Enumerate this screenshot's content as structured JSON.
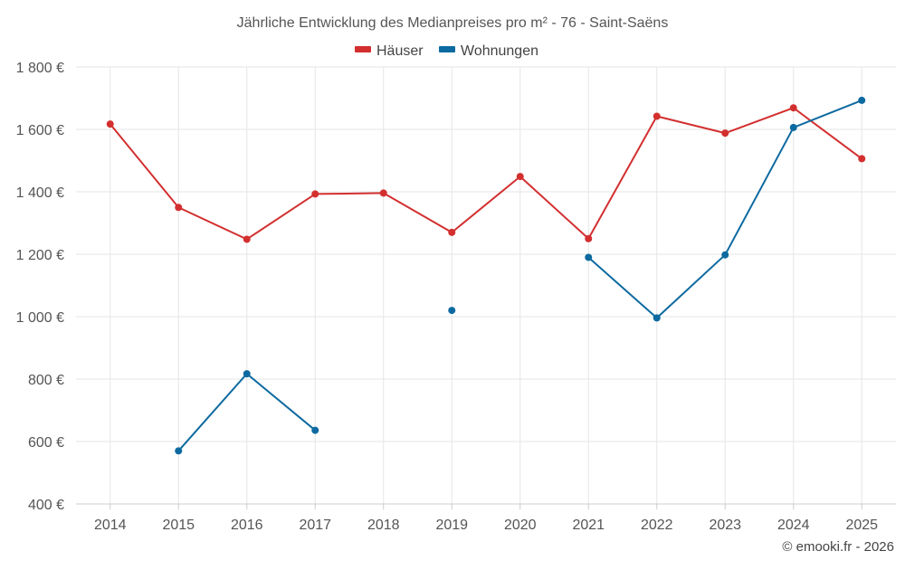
{
  "chart_data": {
    "type": "line",
    "title": "Jährliche Entwicklung des Medianpreises pro m² - 76 - Saint-Saëns",
    "categories": [
      "2014",
      "2015",
      "2016",
      "2017",
      "2018",
      "2019",
      "2020",
      "2021",
      "2022",
      "2023",
      "2024",
      "2025"
    ],
    "series": [
      {
        "name": "Häuser",
        "color": "#d32f2f",
        "values": [
          1617,
          1350,
          1248,
          1393,
          1396,
          1270,
          1449,
          1250,
          1642,
          1588,
          1669,
          1506
        ]
      },
      {
        "name": "Wohnungen",
        "color": "#0d6aa0",
        "values": [
          null,
          570,
          817,
          636,
          null,
          1020,
          null,
          1190,
          996,
          1198,
          1606,
          1693
        ]
      }
    ],
    "y_ticks": [
      400,
      600,
      800,
      1000,
      1200,
      1400,
      1600,
      1800
    ],
    "y_tick_labels": [
      "400 €",
      "600 €",
      "800 €",
      "1 000 €",
      "1 200 €",
      "1 400 €",
      "1 600 €",
      "1 800 €"
    ],
    "ylim": [
      400,
      1800
    ],
    "xlabel": "",
    "ylabel": "",
    "grid": true,
    "legend_position": "top-center"
  },
  "credit": "© emooki.fr - 2026"
}
